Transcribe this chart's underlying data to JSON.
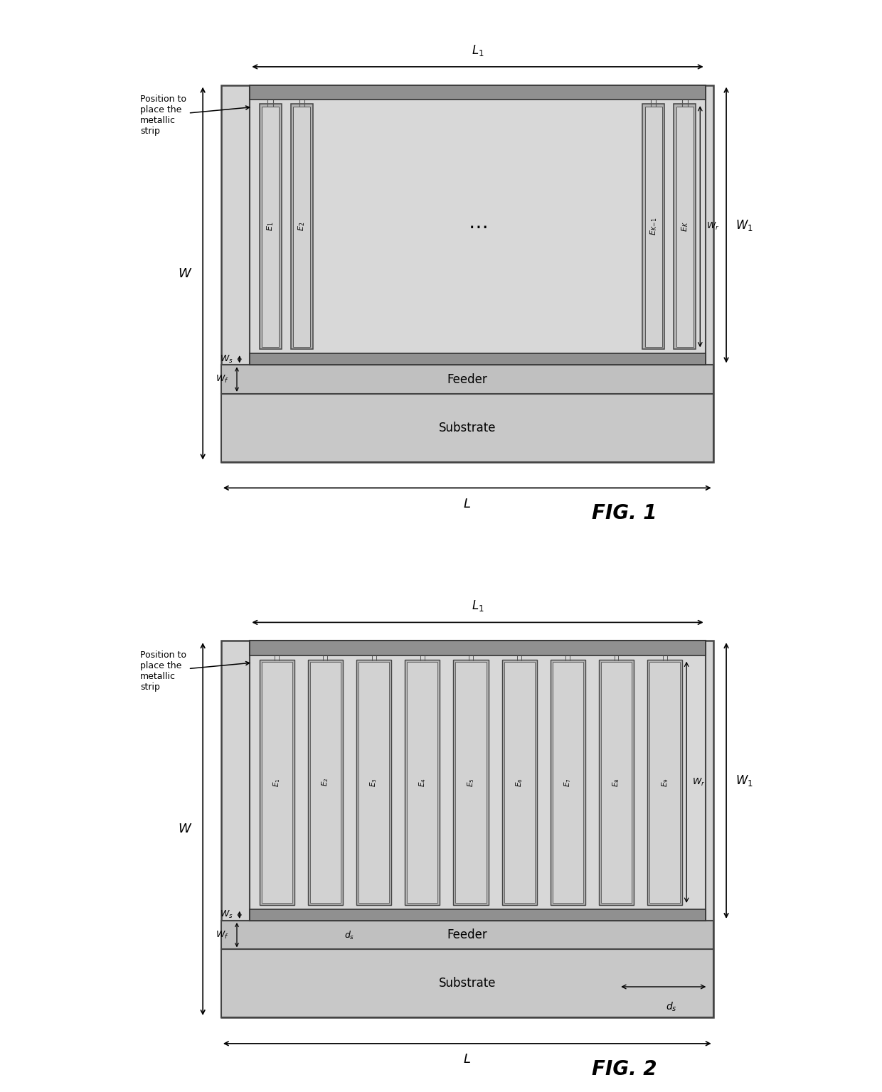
{
  "white_bg": "#ffffff",
  "diagram_bg": "#d4d4d4",
  "substrate_color": "#c8c8c8",
  "feeder_color": "#c0c0c0",
  "res_region_color": "#d8d8d8",
  "top_bar_color": "#909090",
  "bot_bar_color": "#909090",
  "elem_outer_color": "#b4b4b4",
  "elem_inner_color": "#d2d2d2",
  "fig1_label": "FIG. 1",
  "fig2_label": "FIG. 2",
  "annotation_text": "Position to\nplace the\nmetallic\nstrip"
}
